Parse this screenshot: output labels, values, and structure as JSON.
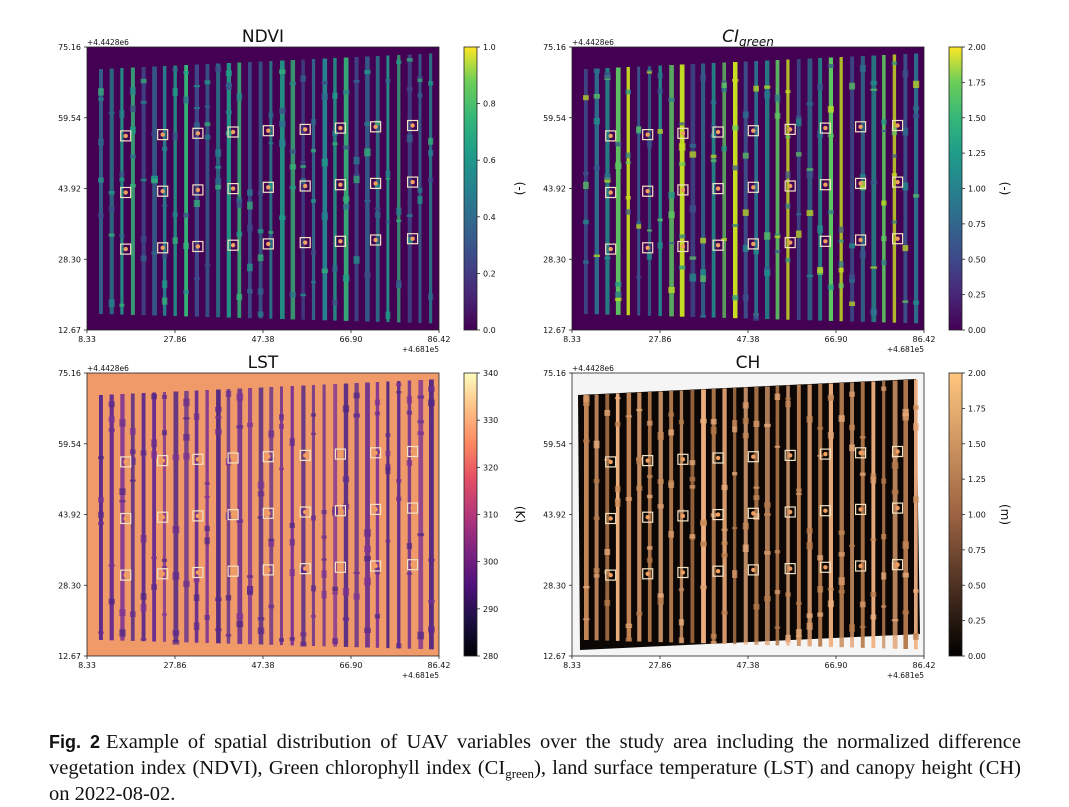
{
  "figure": {
    "panels": [
      {
        "id": "ndvi",
        "title": "NDVI",
        "title_style": "plain",
        "colorbar_label": "(-)",
        "colorbar_ticks": [
          "0.0",
          "0.2",
          "0.4",
          "0.6",
          "0.8",
          "1.0"
        ],
        "colormap": "viridis",
        "background": "#440154",
        "strip_colors": [
          "#31688e",
          "#26828e",
          "#1f9e89",
          "#35b779",
          "#3e4989"
        ]
      },
      {
        "id": "cigreen",
        "title": "CI",
        "title_sub": "green",
        "title_style": "italic",
        "colorbar_label": "(-)",
        "colorbar_ticks": [
          "0.00",
          "0.25",
          "0.50",
          "0.75",
          "1.00",
          "1.25",
          "1.50",
          "1.75",
          "2.00"
        ],
        "colormap": "viridis",
        "background": "#440154",
        "strip_colors": [
          "#3b528b",
          "#2c728e",
          "#21918c",
          "#5ec962",
          "#c8e020"
        ]
      },
      {
        "id": "lst",
        "title": "LST",
        "title_style": "plain",
        "colorbar_label": "(K)",
        "colorbar_ticks": [
          "280",
          "290",
          "300",
          "310",
          "320",
          "330",
          "340"
        ],
        "colormap": "magma",
        "background": "#f09a6a",
        "strip_colors": [
          "#5c2a8c",
          "#6a2d8f",
          "#7b3294",
          "#4f2584"
        ]
      },
      {
        "id": "ch",
        "title": "CH",
        "title_style": "plain",
        "colorbar_label": "(m)",
        "colorbar_ticks": [
          "0.00",
          "0.25",
          "0.50",
          "0.75",
          "1.00",
          "1.25",
          "1.50",
          "1.75",
          "2.00"
        ],
        "colormap": "copper",
        "background": "#0c0704",
        "strip_colors": [
          "#c98a58",
          "#e0a070",
          "#b67a4c",
          "#f0b080"
        ]
      }
    ],
    "x_ticks": [
      "8.33",
      "27.86",
      "47.38",
      "66.90",
      "86.42"
    ],
    "x_offset": "+4.681e5",
    "y_ticks": [
      "12.67",
      "28.30",
      "43.92",
      "59.54",
      "75.16"
    ],
    "y_offset": "+4.4428e6",
    "colors": {
      "box_stroke": "#f3e3c3",
      "dot_fill": "#f0a060"
    }
  },
  "caption": {
    "label": "Fig. 2",
    "text_before": "Example of spatial distribution of UAV variables over the study area including the normalized difference vegetation index (NDVI), Green chlorophyll index (CI",
    "sub": "green",
    "text_after": "), land surface temperature (LST) and canopy height (CH) on 2022-08-02."
  }
}
